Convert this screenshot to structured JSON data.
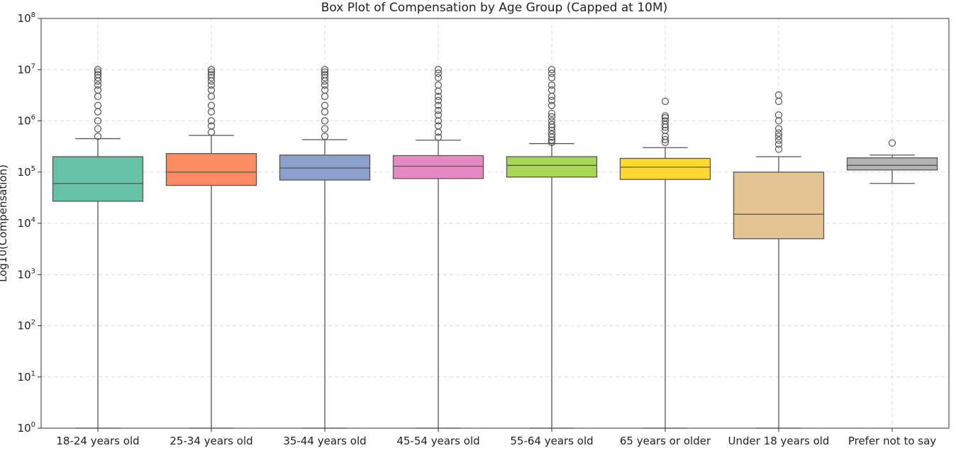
{
  "chart_data": {
    "type": "box",
    "title": "Box Plot of Compensation by Age Group (Capped at 10M)",
    "xlabel": "",
    "ylabel": "Log10(Compensation)",
    "yscale": "log",
    "ylim": [
      1,
      100000000
    ],
    "ytick_labels": [
      {
        "base": "10",
        "exp": "0"
      },
      {
        "base": "10",
        "exp": "1"
      },
      {
        "base": "10",
        "exp": "2"
      },
      {
        "base": "10",
        "exp": "3"
      },
      {
        "base": "10",
        "exp": "4"
      },
      {
        "base": "10",
        "exp": "5"
      },
      {
        "base": "10",
        "exp": "6"
      },
      {
        "base": "10",
        "exp": "7"
      },
      {
        "base": "10",
        "exp": "8"
      }
    ],
    "grid": true,
    "categories": [
      "18-24 years old",
      "25-34 years old",
      "35-44 years old",
      "45-54 years old",
      "55-64 years old",
      "65 years or older",
      "Under 18 years old",
      "Prefer not to say"
    ],
    "boxes": [
      {
        "category": "18-24 years old",
        "color": "#66c2a5",
        "whisker_low": 1,
        "q1": 27000,
        "median": 60000,
        "q3": 200000,
        "whisker_high": 450000,
        "outliers": [
          500000,
          700000,
          1000000,
          1500000,
          2000000,
          3000000,
          4000000,
          5000000,
          6000000,
          7000000,
          8000000,
          9000000,
          10000000
        ]
      },
      {
        "category": "25-34 years old",
        "color": "#fc8d62",
        "whisker_low": 1,
        "q1": 55000,
        "median": 100000,
        "q3": 230000,
        "whisker_high": 520000,
        "outliers": [
          600000,
          800000,
          1000000,
          1500000,
          2000000,
          3000000,
          4000000,
          5000000,
          6000000,
          7000000,
          8000000,
          9000000,
          10000000
        ]
      },
      {
        "category": "35-44 years old",
        "color": "#8da0cb",
        "whisker_low": 1,
        "q1": 70000,
        "median": 120000,
        "q3": 215000,
        "whisker_high": 430000,
        "outliers": [
          500000,
          700000,
          1000000,
          1500000,
          2000000,
          3000000,
          4000000,
          5000000,
          6000000,
          7000000,
          8000000,
          9000000,
          10000000
        ]
      },
      {
        "category": "45-54 years old",
        "color": "#e78ac3",
        "whisker_low": 1,
        "q1": 75000,
        "median": 130000,
        "q3": 210000,
        "whisker_high": 420000,
        "outliers": [
          480000,
          600000,
          800000,
          1000000,
          1300000,
          1600000,
          2000000,
          2500000,
          3000000,
          3800000,
          5000000,
          7000000,
          8500000,
          10000000
        ]
      },
      {
        "category": "55-64 years old",
        "color": "#a6d854",
        "whisker_low": 1,
        "q1": 80000,
        "median": 135000,
        "q3": 200000,
        "whisker_high": 360000,
        "outliers": [
          380000,
          420000,
          480000,
          550000,
          650000,
          750000,
          850000,
          1000000,
          1200000,
          1400000,
          2000000,
          2500000,
          3000000,
          4000000,
          5000000,
          7000000,
          8500000,
          10000000
        ]
      },
      {
        "category": "65 years or older",
        "color": "#ffd92f",
        "whisker_low": 1,
        "q1": 72000,
        "median": 125000,
        "q3": 185000,
        "whisker_high": 300000,
        "outliers": [
          380000,
          430000,
          500000,
          650000,
          750000,
          850000,
          1000000,
          1150000,
          1250000,
          2400000
        ]
      },
      {
        "category": "Under 18 years old",
        "color": "#e5c494",
        "whisker_low": 1,
        "q1": 5000,
        "median": 15000,
        "q3": 100000,
        "whisker_high": 200000,
        "outliers": [
          280000,
          350000,
          420000,
          500000,
          580000,
          700000,
          1000000,
          1300000,
          2400000,
          3200000
        ]
      },
      {
        "category": "Prefer not to say",
        "color": "#b3b3b3",
        "whisker_low": 60000,
        "q1": 110000,
        "median": 135000,
        "q3": 190000,
        "whisker_high": 215000,
        "outliers": [
          370000
        ]
      }
    ]
  }
}
